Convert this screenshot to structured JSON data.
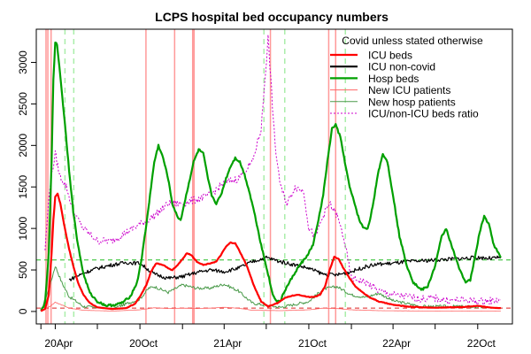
{
  "chart_data": {
    "type": "line",
    "title": "LCPS hospital bed occupancy numbers",
    "xlabel": "",
    "ylabel": "",
    "x_ticks": [
      "20Apr",
      "20Oct",
      "21Apr",
      "21Oct",
      "22Apr",
      "22Oct"
    ],
    "x_tick_dates": [
      "2020-04-01",
      "2020-10-01",
      "2021-04-01",
      "2021-10-01",
      "2022-04-01",
      "2022-10-01"
    ],
    "xlim": [
      "2020-02-20",
      "2022-12-15"
    ],
    "y_ticks": [
      0,
      500,
      1000,
      1500,
      2000,
      2500,
      3000
    ],
    "ylim": [
      -150,
      3400
    ],
    "grid": false,
    "legend": {
      "title": "Covid unless stated otherwise",
      "placement": "top-right",
      "entries": [
        {
          "label": "ICU beds",
          "color": "#ff0000",
          "style": "solid-thick"
        },
        {
          "label": "ICU non-covid",
          "color": "#000000",
          "style": "solid-thick"
        },
        {
          "label": "Hosp beds",
          "color": "#00a000",
          "style": "solid-thick"
        },
        {
          "label": "New ICU patients",
          "color": "#ff6666",
          "style": "solid-thin"
        },
        {
          "label": "New hosp patients",
          "color": "#4a9a4a",
          "style": "solid-thin"
        },
        {
          "label": "ICU/non-ICU beds ratio",
          "color": "#cc00cc",
          "style": "dotted"
        }
      ]
    },
    "reference_lines": [
      {
        "orientation": "horizontal",
        "value": 620,
        "color": "#22bb22",
        "style": "dashed"
      },
      {
        "orientation": "horizontal",
        "value": 40,
        "color": "#dd2222",
        "style": "dashed"
      }
    ],
    "vertical_markers": [
      {
        "date": "2020-03-12",
        "color": "#ff9999",
        "kind": "solid"
      },
      {
        "date": "2020-03-16",
        "color": "#ff9999",
        "kind": "solid"
      },
      {
        "date": "2020-03-23",
        "color": "#ff9999",
        "kind": "solid"
      },
      {
        "date": "2020-04-22",
        "color": "#aaeeaa",
        "kind": "dashed"
      },
      {
        "date": "2020-05-11",
        "color": "#aaeeaa",
        "kind": "dashed"
      },
      {
        "date": "2020-10-14",
        "color": "#ff9999",
        "kind": "solid"
      },
      {
        "date": "2020-12-15",
        "color": "#ff9999",
        "kind": "solid"
      },
      {
        "date": "2021-01-23",
        "color": "#ff9999",
        "kind": "solid"
      },
      {
        "date": "2021-01-26",
        "color": "#ff9999",
        "kind": "solid"
      },
      {
        "date": "2021-06-26",
        "color": "#aaeeaa",
        "kind": "dashed"
      },
      {
        "date": "2021-07-10",
        "color": "#ff9999",
        "kind": "solid"
      },
      {
        "date": "2021-08-10",
        "color": "#aaeeaa",
        "kind": "dashed"
      },
      {
        "date": "2021-11-13",
        "color": "#ff9999",
        "kind": "solid"
      },
      {
        "date": "2021-11-28",
        "color": "#ff9999",
        "kind": "solid"
      },
      {
        "date": "2021-12-19",
        "color": "#aaeeaa",
        "kind": "dashed"
      }
    ],
    "series": [
      {
        "name": "Hosp beds",
        "color": "#00a000",
        "x": [
          "2020-03-01",
          "2020-03-10",
          "2020-03-18",
          "2020-03-24",
          "2020-03-28",
          "2020-04-01",
          "2020-04-05",
          "2020-04-10",
          "2020-04-16",
          "2020-04-22",
          "2020-05-01",
          "2020-05-10",
          "2020-05-20",
          "2020-06-01",
          "2020-06-15",
          "2020-07-01",
          "2020-07-20",
          "2020-08-10",
          "2020-08-25",
          "2020-09-10",
          "2020-09-25",
          "2020-10-05",
          "2020-10-15",
          "2020-10-25",
          "2020-11-01",
          "2020-11-10",
          "2020-11-20",
          "2020-12-01",
          "2020-12-10",
          "2020-12-20",
          "2020-12-28",
          "2021-01-05",
          "2021-01-15",
          "2021-01-25",
          "2021-02-05",
          "2021-02-15",
          "2021-02-25",
          "2021-03-05",
          "2021-03-15",
          "2021-03-25",
          "2021-04-05",
          "2021-04-15",
          "2021-04-25",
          "2021-05-05",
          "2021-05-15",
          "2021-05-25",
          "2021-06-05",
          "2021-06-20",
          "2021-07-05",
          "2021-07-15",
          "2021-07-25",
          "2021-08-01",
          "2021-08-10",
          "2021-08-25",
          "2021-09-10",
          "2021-09-25",
          "2021-10-10",
          "2021-10-20",
          "2021-11-01",
          "2021-11-10",
          "2021-11-20",
          "2021-11-28",
          "2021-12-08",
          "2021-12-18",
          "2021-12-28",
          "2022-01-08",
          "2022-01-18",
          "2022-01-28",
          "2022-02-05",
          "2022-02-12",
          "2022-02-20",
          "2022-03-01",
          "2022-03-10",
          "2022-03-20",
          "2022-04-01",
          "2022-04-15",
          "2022-05-01",
          "2022-05-15",
          "2022-06-01",
          "2022-06-15",
          "2022-07-01",
          "2022-07-15",
          "2022-07-25",
          "2022-08-05",
          "2022-08-20",
          "2022-09-05",
          "2022-09-15",
          "2022-09-25",
          "2022-10-05",
          "2022-10-15",
          "2022-10-25",
          "2022-11-05",
          "2022-11-20"
        ],
        "values": [
          10,
          100,
          700,
          1800,
          2800,
          3250,
          3200,
          2950,
          2600,
          2250,
          1700,
          1200,
          800,
          450,
          220,
          120,
          70,
          80,
          110,
          180,
          350,
          650,
          1050,
          1500,
          1800,
          2000,
          1850,
          1600,
          1300,
          1150,
          1100,
          1300,
          1550,
          1800,
          1950,
          1900,
          1600,
          1400,
          1300,
          1400,
          1600,
          1750,
          1850,
          1800,
          1650,
          1450,
          1200,
          800,
          450,
          200,
          120,
          130,
          250,
          400,
          550,
          650,
          800,
          1050,
          1400,
          1800,
          2200,
          2250,
          2100,
          1800,
          1500,
          1300,
          1100,
          1000,
          1000,
          1150,
          1400,
          1700,
          1900,
          1800,
          1400,
          900,
          550,
          350,
          260,
          300,
          550,
          900,
          1000,
          800,
          550,
          350,
          380,
          650,
          950,
          1150,
          1050,
          800,
          650
        ]
      },
      {
        "name": "ICU beds",
        "color": "#ff0000",
        "x": [
          "2020-03-01",
          "2020-03-10",
          "2020-03-18",
          "2020-03-24",
          "2020-03-28",
          "2020-04-01",
          "2020-04-06",
          "2020-04-12",
          "2020-04-20",
          "2020-05-01",
          "2020-05-10",
          "2020-05-20",
          "2020-06-01",
          "2020-06-15",
          "2020-07-01",
          "2020-08-01",
          "2020-09-01",
          "2020-09-20",
          "2020-10-01",
          "2020-10-15",
          "2020-10-25",
          "2020-11-05",
          "2020-11-20",
          "2020-12-01",
          "2020-12-10",
          "2020-12-20",
          "2021-01-01",
          "2021-01-10",
          "2021-01-20",
          "2021-02-01",
          "2021-02-15",
          "2021-03-01",
          "2021-03-15",
          "2021-03-25",
          "2021-04-05",
          "2021-04-15",
          "2021-04-25",
          "2021-05-05",
          "2021-05-20",
          "2021-06-05",
          "2021-06-20",
          "2021-07-05",
          "2021-07-25",
          "2021-08-10",
          "2021-08-25",
          "2021-09-10",
          "2021-09-25",
          "2021-10-10",
          "2021-10-25",
          "2021-11-05",
          "2021-11-15",
          "2021-11-25",
          "2021-12-05",
          "2021-12-15",
          "2021-12-28",
          "2022-01-10",
          "2022-01-25",
          "2022-02-10",
          "2022-03-01",
          "2022-04-01",
          "2022-05-01",
          "2022-06-01",
          "2022-07-01",
          "2022-08-01",
          "2022-09-01",
          "2022-10-01",
          "2022-11-01",
          "2022-11-20"
        ],
        "values": [
          5,
          30,
          200,
          700,
          1100,
          1380,
          1420,
          1300,
          1050,
          750,
          550,
          350,
          200,
          100,
          50,
          30,
          40,
          90,
          180,
          320,
          480,
          580,
          560,
          520,
          500,
          550,
          630,
          700,
          680,
          600,
          560,
          580,
          600,
          680,
          780,
          830,
          820,
          720,
          550,
          300,
          120,
          60,
          100,
          160,
          190,
          200,
          180,
          170,
          200,
          300,
          500,
          660,
          630,
          520,
          400,
          300,
          230,
          170,
          120,
          80,
          60,
          50,
          45,
          50,
          55,
          65,
          45,
          40
        ]
      },
      {
        "name": "ICU non-covid",
        "color": "#000000",
        "x": [
          "2020-05-01",
          "2020-05-20",
          "2020-06-10",
          "2020-07-01",
          "2020-08-01",
          "2020-09-01",
          "2020-10-01",
          "2020-11-01",
          "2020-12-01",
          "2021-01-01",
          "2021-02-01",
          "2021-03-01",
          "2021-04-01",
          "2021-05-01",
          "2021-06-01",
          "2021-07-01",
          "2021-08-01",
          "2021-09-01",
          "2021-10-01",
          "2021-11-01",
          "2021-12-01",
          "2022-01-01",
          "2022-02-01",
          "2022-03-01",
          "2022-04-01",
          "2022-05-01",
          "2022-06-01",
          "2022-07-01",
          "2022-08-01",
          "2022-09-01",
          "2022-10-01",
          "2022-11-01",
          "2022-11-20"
        ],
        "values": [
          380,
          430,
          480,
          520,
          560,
          590,
          580,
          450,
          400,
          420,
          470,
          500,
          480,
          520,
          600,
          650,
          600,
          560,
          520,
          450,
          440,
          480,
          540,
          570,
          580,
          600,
          610,
          620,
          630,
          640,
          650,
          640,
          650
        ]
      },
      {
        "name": "New ICU patients",
        "color": "#ff6666",
        "x": [
          "2020-03-01",
          "2020-03-20",
          "2020-04-01",
          "2020-04-15",
          "2020-05-01",
          "2020-06-01",
          "2020-08-01",
          "2020-10-01",
          "2020-11-01",
          "2020-12-01",
          "2021-01-01",
          "2021-02-01",
          "2021-03-01",
          "2021-04-01",
          "2021-05-01",
          "2021-06-01",
          "2021-08-01",
          "2021-10-01",
          "2021-11-01",
          "2021-12-01",
          "2022-01-01",
          "2022-03-01",
          "2022-06-01",
          "2022-09-01",
          "2022-11-20"
        ],
        "values": [
          0,
          60,
          110,
          80,
          40,
          15,
          5,
          20,
          45,
          35,
          40,
          35,
          40,
          50,
          40,
          15,
          10,
          20,
          40,
          35,
          20,
          10,
          5,
          5,
          5
        ]
      },
      {
        "name": "New hosp patients",
        "color": "#4a9a4a",
        "x": [
          "2020-03-01",
          "2020-03-20",
          "2020-04-01",
          "2020-04-15",
          "2020-05-01",
          "2020-06-01",
          "2020-08-01",
          "2020-10-01",
          "2020-10-20",
          "2020-11-01",
          "2020-12-01",
          "2021-01-01",
          "2021-02-01",
          "2021-03-01",
          "2021-04-01",
          "2021-05-01",
          "2021-06-01",
          "2021-08-01",
          "2021-10-01",
          "2021-11-01",
          "2021-12-01",
          "2022-01-01",
          "2022-02-01",
          "2022-03-01",
          "2022-04-01",
          "2022-06-01",
          "2022-09-01",
          "2022-11-20"
        ],
        "values": [
          0,
          300,
          550,
          350,
          180,
          60,
          30,
          150,
          280,
          300,
          230,
          320,
          280,
          280,
          330,
          250,
          100,
          50,
          120,
          270,
          300,
          200,
          170,
          220,
          130,
          60,
          60,
          40
        ]
      },
      {
        "name": "ICU/non-ICU beds ratio",
        "color": "#cc00cc",
        "x": [
          "2020-03-10",
          "2020-03-20",
          "2020-04-01",
          "2020-04-10",
          "2020-04-25",
          "2020-05-10",
          "2020-06-01",
          "2020-07-01",
          "2020-08-01",
          "2020-09-01",
          "2020-10-01",
          "2020-11-01",
          "2020-12-01",
          "2021-01-01",
          "2021-02-01",
          "2021-03-01",
          "2021-04-01",
          "2021-05-01",
          "2021-06-01",
          "2021-06-20",
          "2021-07-05",
          "2021-07-20",
          "2021-08-01",
          "2021-08-15",
          "2021-09-01",
          "2021-09-20",
          "2021-10-01",
          "2021-10-15",
          "2021-11-01",
          "2021-11-15",
          "2021-12-01",
          "2021-12-15",
          "2022-01-01",
          "2022-02-01",
          "2022-03-01",
          "2022-04-01",
          "2022-05-01",
          "2022-06-01",
          "2022-07-01",
          "2022-08-01",
          "2022-09-01",
          "2022-10-01",
          "2022-11-01",
          "2022-11-20"
        ],
        "values": [
          750,
          1500,
          1900,
          1650,
          1500,
          1200,
          1000,
          850,
          850,
          950,
          1050,
          1150,
          1300,
          1300,
          1350,
          1400,
          1550,
          1600,
          1800,
          2200,
          3300,
          2000,
          1500,
          1300,
          1500,
          1450,
          1000,
          900,
          1150,
          1300,
          1150,
          900,
          400,
          350,
          250,
          200,
          180,
          150,
          160,
          130,
          140,
          120,
          130,
          140
        ]
      }
    ]
  }
}
